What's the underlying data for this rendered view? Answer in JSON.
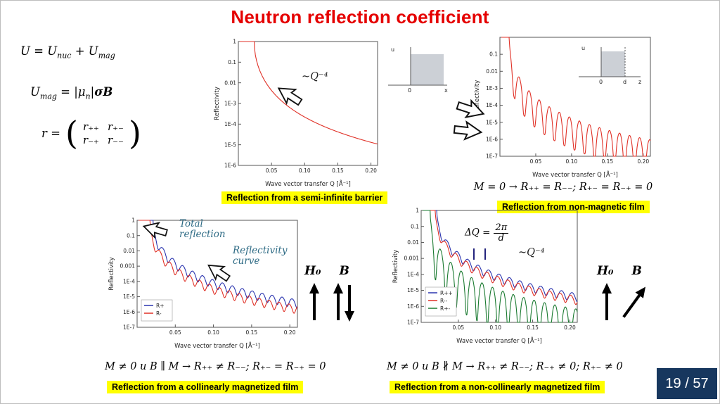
{
  "title": "Neutron reflection coefficient",
  "page_indicator": "19 / 57",
  "colors": {
    "title": "#e50000",
    "highlight": "#ffff00",
    "page_bg": "#17375e",
    "red": "#e03127",
    "blue": "#2b35af",
    "green": "#1a7a30",
    "ink": "#2e6b85"
  },
  "equations": {
    "potential_html": "U = U<sub>nuc</sub> + U<sub>mag</sub>",
    "umag_html": "U<sub>mag</sub> = |μ<sub>n</sub>|<b>σB</b>",
    "matrix_prefix": "r =",
    "matrix": {
      "e00": "r₊₊",
      "e01": "r₊₋",
      "e10": "r₋₊",
      "e11": "r₋₋"
    },
    "nonmagnetic": "M = 0 → R₊₊ = R₋₋; R₊₋ = R₋₊ = 0",
    "collinear": "M ≠ 0 и B ∥ M → R₊₊ ≠ R₋₋; R₊₋ = R₋₊ = 0",
    "noncollinear": "M ≠ 0 и B ∦ M → R₊₊ ≠ R₋₋; R₋₊ ≠ 0; R₊₋ ≠ 0"
  },
  "captions": {
    "semi_infinite": "Reflection from a semi-infinite barrier",
    "nonmagnetic": "Reflection from non-magnetic film",
    "collinear": "Reflection from a collinearly magnetized film",
    "noncollinear": "Reflection from a non-collinearly magnetized film"
  },
  "annotations": {
    "q4_top": "~Q⁻⁴",
    "q4_bottom": "~Q⁻⁴",
    "total_reflection_l1": "Total",
    "total_reflection_l2": "reflection",
    "reflectivity_curve_l1": "Reflectivity",
    "reflectivity_curve_l2": "curve",
    "dq_lhs": "ΔQ =",
    "dq_num": "2π",
    "dq_den": "d",
    "h0": "H₀",
    "b": "B"
  },
  "insets": {
    "barrier": {
      "ylab": "u",
      "zero": "0",
      "xlab": "x"
    },
    "film": {
      "ylab": "u",
      "zero": "0",
      "d": "d",
      "xlab": "z"
    }
  },
  "chart_data": [
    {
      "id": "c1",
      "type": "line",
      "title": "Reflection from a semi-infinite barrier",
      "xlabel": "Wave vector transfer Q [Å⁻¹]",
      "ylabel": "Reflectivity",
      "xmin": 0,
      "xmax": 0.21,
      "ymax_exp": 0,
      "ymin_exp": -6,
      "xticks": [
        {
          "v": 0.05,
          "label": "0.05"
        },
        {
          "v": 0.1,
          "label": "0.10"
        },
        {
          "v": 0.15,
          "label": "0.15"
        },
        {
          "v": 0.2,
          "label": "0.20"
        }
      ],
      "yticks": [
        {
          "e": 0,
          "label": "1"
        },
        {
          "e": -1,
          "label": "0.1"
        },
        {
          "e": -2,
          "label": "0.01"
        },
        {
          "e": -3,
          "label": "1E-3"
        },
        {
          "e": -4,
          "label": "1E-4"
        },
        {
          "e": -5,
          "label": "1E-5"
        },
        {
          "e": -6,
          "label": "1E-6"
        }
      ],
      "curves": [
        {
          "name": "R",
          "color": "#e03127",
          "qc": 0.024
        }
      ]
    },
    {
      "id": "c2",
      "type": "line",
      "title": "Reflection from non-magnetic film",
      "xlabel": "Wave vector transfer Q [Å⁻¹]",
      "ylabel": "Reflectivity",
      "xmin": 0,
      "xmax": 0.21,
      "ymax_exp": 0,
      "ymin_exp": -7,
      "xticks": [
        {
          "v": 0.05,
          "label": "0.05"
        },
        {
          "v": 0.1,
          "label": "0.10"
        },
        {
          "v": 0.15,
          "label": "0.15"
        },
        {
          "v": 0.2,
          "label": "0.20"
        }
      ],
      "yticks": [
        {
          "e": -1,
          "label": "0.1"
        },
        {
          "e": -2,
          "label": "0.01"
        },
        {
          "e": -3,
          "label": "1E-3"
        },
        {
          "e": -4,
          "label": "1E-4"
        },
        {
          "e": -5,
          "label": "1E-5"
        },
        {
          "e": -6,
          "label": "1E-6"
        },
        {
          "e": -7,
          "label": "1E-7"
        }
      ],
      "curves": [
        {
          "name": "R",
          "color": "#e03127",
          "qc": 0.013,
          "period": 0.014,
          "eps": 0.015,
          "pow": 2
        }
      ]
    },
    {
      "id": "c3",
      "type": "line",
      "legend": true,
      "title": "Reflection from a collinearly magnetized film",
      "xlabel": "Wave vector transfer Q [Å⁻¹]",
      "ylabel": "Reflectivity",
      "xmin": 0,
      "xmax": 0.21,
      "ymax_exp": 0,
      "ymin_exp": -7,
      "xticks": [
        {
          "v": 0.05,
          "label": "0.05"
        },
        {
          "v": 0.1,
          "label": "0.10"
        },
        {
          "v": 0.15,
          "label": "0.15"
        },
        {
          "v": 0.2,
          "label": "0.20"
        }
      ],
      "yticks": [
        {
          "e": 0,
          "label": "1"
        },
        {
          "e": -1,
          "label": "0.1"
        },
        {
          "e": -2,
          "label": "0.01"
        },
        {
          "e": -3,
          "label": "0.001"
        },
        {
          "e": -4,
          "label": "1E-4"
        },
        {
          "e": -5,
          "label": "1E-5"
        },
        {
          "e": -6,
          "label": "1E-6"
        },
        {
          "e": -7,
          "label": "1E-7"
        }
      ],
      "curves": [
        {
          "name": "R+",
          "color": "#2b35af",
          "qc": 0.021,
          "period": 0.013,
          "eps": 0.28,
          "pow": 1
        },
        {
          "name": "R-",
          "color": "#e03127",
          "qc": 0.017,
          "period": 0.013,
          "eps": 0.28,
          "pow": 1
        }
      ]
    },
    {
      "id": "c4",
      "type": "line",
      "legend": true,
      "title": "Reflection from a non-collinearly magnetized film",
      "xlabel": "Wave vector transfer Q [Å⁻¹]",
      "ylabel": "Reflectivity",
      "xmin": 0,
      "xmax": 0.21,
      "ymax_exp": 0,
      "ymin_exp": -7,
      "xticks": [
        {
          "v": 0.05,
          "label": "0.05"
        },
        {
          "v": 0.1,
          "label": "0.10"
        },
        {
          "v": 0.15,
          "label": "0.15"
        },
        {
          "v": 0.2,
          "label": "0.20"
        }
      ],
      "yticks": [
        {
          "e": 0,
          "label": "1"
        },
        {
          "e": -1,
          "label": "0.1"
        },
        {
          "e": -2,
          "label": "0.01"
        },
        {
          "e": -3,
          "label": "0.001"
        },
        {
          "e": -4,
          "label": "1E-4"
        },
        {
          "e": -5,
          "label": "1E-5"
        },
        {
          "e": -6,
          "label": "1E-6"
        },
        {
          "e": -7,
          "label": "1E-7"
        }
      ],
      "curves": [
        {
          "name": "R++",
          "color": "#2b35af",
          "qc": 0.021,
          "period": 0.014,
          "eps": 0.3,
          "pow": 1
        },
        {
          "name": "R--",
          "color": "#e03127",
          "qc": 0.019,
          "period": 0.014,
          "eps": 0.3,
          "pow": 1
        },
        {
          "name": "R+-",
          "color": "#1a7a30",
          "qc": 0.012,
          "period": 0.014,
          "eps": 0.003,
          "pow": 2
        }
      ]
    }
  ]
}
